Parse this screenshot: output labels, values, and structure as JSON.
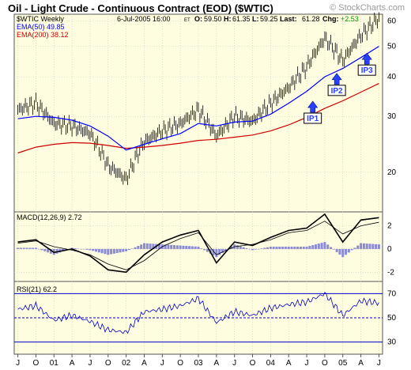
{
  "header": {
    "title": "Oil - Light Crude - Continuous Contract (EOD) ($WTIC)",
    "watermark": "© StockCharts.com",
    "date_time": "6-Jul-2005 16:00",
    "tz": "ET",
    "open_label": "O:",
    "open": "59.50",
    "high_label": "H:",
    "high": "61.35",
    "low_label": "L:",
    "low": "59.25",
    "last_label": "Last:",
    "last": "61.28",
    "chg_label": "Chg:",
    "chg": "+2.53"
  },
  "colors": {
    "panel_bg": "#fffde0",
    "ema50": "#0000ff",
    "ema200": "#cc0000",
    "price": "#000000",
    "hist": "#8a8ad8",
    "grid": "#c8c8c8",
    "rsi_band": "#0000cc",
    "chg_color": "#009900",
    "annot_box": "#2a40ff"
  },
  "chart_data": [
    {
      "type": "bar",
      "panel": "price",
      "symbol_label": "$WTIC Weekly",
      "ema50_label": "EMA(50) 49.85",
      "ema200_label": "EMA(200) 38.12",
      "y_scale": "log",
      "ylim": [
        15,
        63
      ],
      "yticks": [
        20,
        30,
        40,
        50,
        60
      ],
      "x_dates": [
        "2000-07",
        "2000-10",
        "2001-01",
        "2001-04",
        "2001-07",
        "2001-10",
        "2002-01",
        "2002-04",
        "2002-07",
        "2002-10",
        "2003-01",
        "2003-04",
        "2003-07",
        "2003-10",
        "2004-01",
        "2004-04",
        "2004-07",
        "2004-10",
        "2005-01",
        "2005-04",
        "2005-07"
      ],
      "close": [
        31.5,
        33.0,
        28.5,
        28.0,
        26.5,
        21.0,
        19.0,
        25.0,
        27.0,
        28.5,
        31.5,
        26.0,
        30.0,
        29.0,
        33.0,
        37.0,
        43.0,
        53.0,
        45.0,
        54.0,
        61.3
      ],
      "ema50": [
        29.5,
        30.0,
        29.8,
        29.2,
        28.0,
        26.0,
        23.5,
        24.5,
        25.5,
        26.5,
        28.5,
        28.0,
        28.8,
        29.0,
        30.5,
        33.0,
        36.0,
        40.0,
        42.5,
        46.0,
        49.9
      ],
      "ema200": [
        23.0,
        24.0,
        24.5,
        24.8,
        24.7,
        24.3,
        23.8,
        24.0,
        24.3,
        24.7,
        25.2,
        25.4,
        25.8,
        26.2,
        27.0,
        28.2,
        29.8,
        31.8,
        33.6,
        35.8,
        38.1
      ],
      "annotations": [
        {
          "label": "IP1",
          "date": "2004-08",
          "value": 33.5
        },
        {
          "label": "IP2",
          "date": "2004-12",
          "value": 41.0
        },
        {
          "label": "IP3",
          "date": "2005-05",
          "value": 47.5
        }
      ],
      "grid": true
    },
    {
      "type": "line",
      "panel": "macd",
      "label": "MACD(12,26,9) 2.72",
      "ylim": [
        -2.8,
        3.2
      ],
      "yticks": [
        -2,
        0,
        2
      ],
      "x_dates": [
        "2000-07",
        "2000-10",
        "2001-01",
        "2001-04",
        "2001-07",
        "2001-10",
        "2002-01",
        "2002-04",
        "2002-07",
        "2002-10",
        "2003-01",
        "2003-04",
        "2003-07",
        "2003-10",
        "2004-01",
        "2004-04",
        "2004-07",
        "2004-10",
        "2005-01",
        "2005-04",
        "2005-07"
      ],
      "macd": [
        0.6,
        0.8,
        -0.3,
        0.0,
        -0.6,
        -1.8,
        -2.0,
        -0.5,
        0.6,
        1.2,
        1.6,
        -1.2,
        0.6,
        0.3,
        1.0,
        1.6,
        1.8,
        3.0,
        0.6,
        2.5,
        2.7
      ],
      "signal": [
        0.5,
        0.7,
        0.2,
        -0.1,
        -0.5,
        -1.3,
        -1.8,
        -1.0,
        0.2,
        0.9,
        1.4,
        -0.5,
        0.2,
        0.4,
        0.8,
        1.4,
        1.6,
        2.4,
        1.3,
        2.0,
        2.3
      ],
      "grid": true
    },
    {
      "type": "line",
      "panel": "rsi",
      "label": "RSI(21) 62.2",
      "ylim": [
        20,
        80
      ],
      "yticks": [
        30,
        50,
        70
      ],
      "x_dates": [
        "2000-07",
        "2000-10",
        "2001-01",
        "2001-04",
        "2001-07",
        "2001-10",
        "2002-01",
        "2002-04",
        "2002-07",
        "2002-10",
        "2003-01",
        "2003-04",
        "2003-07",
        "2003-10",
        "2004-01",
        "2004-04",
        "2004-07",
        "2004-10",
        "2005-01",
        "2005-04",
        "2005-07"
      ],
      "values": [
        57,
        60,
        48,
        52,
        47,
        40,
        38,
        55,
        57,
        60,
        66,
        46,
        55,
        52,
        58,
        61,
        63,
        70,
        52,
        64,
        62.2
      ],
      "grid": true
    }
  ],
  "x_axis": {
    "labels": [
      "J",
      "O",
      "01",
      "A",
      "J",
      "O",
      "02",
      "A",
      "J",
      "O",
      "03",
      "A",
      "J",
      "O",
      "04",
      "A",
      "J",
      "O",
      "05",
      "A",
      "J"
    ],
    "label_dates": [
      "2000-07",
      "2000-10",
      "2001-01",
      "2001-04",
      "2001-07",
      "2001-10",
      "2002-01",
      "2002-04",
      "2002-07",
      "2002-10",
      "2003-01",
      "2003-04",
      "2003-07",
      "2003-10",
      "2004-01",
      "2004-04",
      "2004-07",
      "2004-10",
      "2005-01",
      "2005-04",
      "2005-07"
    ]
  }
}
